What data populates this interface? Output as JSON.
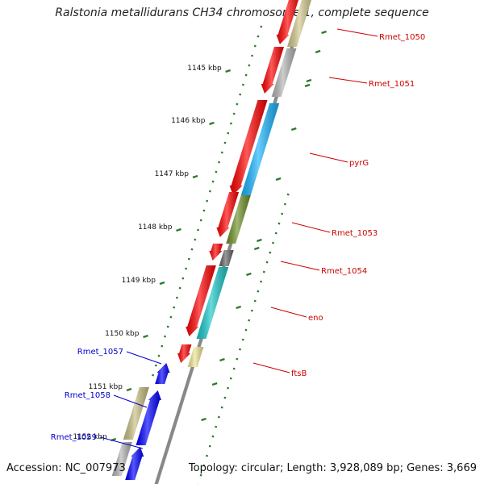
{
  "title": "Ralstonia metallidurans CH34 chromosome 1, complete sequence",
  "accession": "Accession: NC_007973",
  "topology": "Topology: circular; Length: 3,928,089 bp; Genes: 3,669",
  "colors": {
    "backbone": "#888888",
    "tick": "#2a7d2a",
    "label_right": "#cc0000",
    "label_left": "#0000cc"
  },
  "ticks": [
    {
      "label": "1145 kbp"
    },
    {
      "label": "1146 kbp"
    },
    {
      "label": "1147 kbp"
    },
    {
      "label": "1148 kbp"
    },
    {
      "label": "1149 kbp"
    },
    {
      "label": "1150 kbp"
    },
    {
      "label": "1151 kbp"
    },
    {
      "label": "1152 kbp"
    }
  ],
  "genes_right": [
    {
      "label": "Rmet_1050",
      "color": "#d2c88c"
    },
    {
      "label": "Rmet_1051",
      "color": "#b4b4b4"
    },
    {
      "label": "pyrG",
      "color": "#19b4ff"
    },
    {
      "label": "Rmet_1053",
      "color": "#6e9128"
    },
    {
      "label": "Rmet_1054",
      "color": "#646464"
    },
    {
      "label": "eno",
      "color": "#19c8c8"
    },
    {
      "label": "ftsB",
      "color": "#f0e696"
    }
  ],
  "genes_left": [
    {
      "label": "Rmet_1057",
      "color": "#0000ff"
    },
    {
      "label": "Rmet_1058",
      "color": "#c8be82"
    },
    {
      "label": "Rmet_1059",
      "color": "#b4b4b4"
    }
  ]
}
